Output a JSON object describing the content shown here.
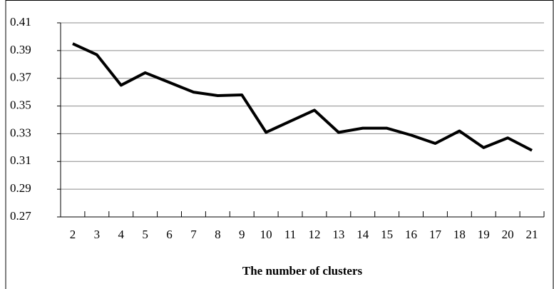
{
  "chart_data": {
    "type": "line",
    "x_label": "The number of clusters",
    "categories": [
      "2",
      "3",
      "4",
      "5",
      "6",
      "7",
      "8",
      "9",
      "10",
      "11",
      "12",
      "13",
      "14",
      "15",
      "16",
      "17",
      "18",
      "19",
      "20",
      "21"
    ],
    "series": [
      {
        "name": null,
        "color": "#000000",
        "values": [
          0.395,
          0.387,
          0.365,
          0.374,
          0.367,
          0.36,
          0.3575,
          0.358,
          0.331,
          0.339,
          0.347,
          0.331,
          0.334,
          0.334,
          0.329,
          0.323,
          0.332,
          0.32,
          0.327,
          0.318
        ]
      }
    ],
    "ylim": [
      0.27,
      0.41
    ],
    "yticks": [
      0.27,
      0.29,
      0.31,
      0.33,
      0.35,
      0.37,
      0.39,
      0.41
    ],
    "grid": true
  }
}
